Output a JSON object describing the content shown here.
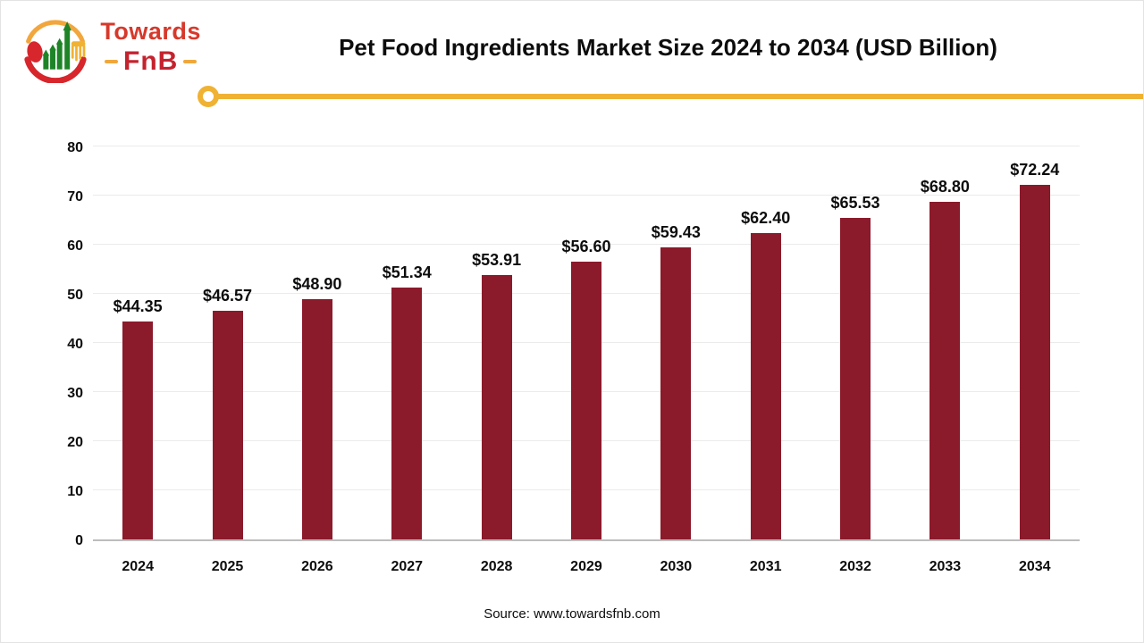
{
  "brand": {
    "name_top": "Towards",
    "name_bottom": "FnB"
  },
  "header": {
    "title": "Pet Food Ingredients Market Size 2024 to 2034 (USD Billion)"
  },
  "chart_data": {
    "type": "bar",
    "title": "Pet Food Ingredients Market Size 2024 to 2034 (USD Billion)",
    "categories": [
      "2024",
      "2025",
      "2026",
      "2027",
      "2028",
      "2029",
      "2030",
      "2031",
      "2032",
      "2033",
      "2034"
    ],
    "values": [
      44.35,
      46.57,
      48.9,
      51.34,
      53.91,
      56.6,
      59.43,
      62.4,
      65.53,
      68.8,
      72.24
    ],
    "value_labels": [
      "$44.35",
      "$46.57",
      "$48.90",
      "$51.34",
      "$53.91",
      "$56.60",
      "$59.43",
      "$62.40",
      "$65.53",
      "$68.80",
      "$72.24"
    ],
    "xlabel": "",
    "ylabel": "",
    "ylim": [
      0,
      80
    ],
    "yticks": [
      0,
      10,
      20,
      30,
      40,
      50,
      60,
      70,
      80
    ],
    "grid": true,
    "legend": false,
    "bar_color": "#8b1a2b"
  },
  "footer": {
    "source": "Source: www.towardsfnb.com"
  },
  "colors": {
    "bar": "#8b1a2b",
    "accent_yellow": "#f0b233",
    "gridline": "#ebebeb",
    "axis_line": "#bdbdbd",
    "logo_red": "#d6392b",
    "logo_dark_red": "#c4232e",
    "logo_green": "#1e8427",
    "logo_amber": "#f2a63c"
  }
}
